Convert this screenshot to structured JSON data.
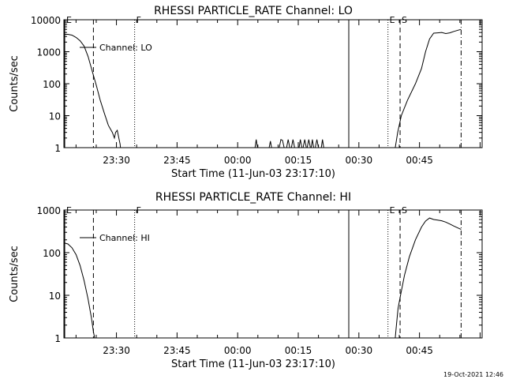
{
  "footer": {
    "timestamp": "19-Oct-2021 12:46"
  },
  "chart_data": [
    {
      "type": "line",
      "title": "RHESSI PARTICLE_RATE Channel: LO",
      "xlabel": "Start Time (11-Jun-03 23:17:10)",
      "ylabel": "Counts/sec",
      "xlim": [
        0,
        103.5
      ],
      "ylim": [
        1,
        10000
      ],
      "yscale": "log",
      "x_ticks": [
        {
          "x": 13,
          "label": "23:30"
        },
        {
          "x": 28,
          "label": "23:45"
        },
        {
          "x": 43,
          "label": "00:00"
        },
        {
          "x": 58,
          "label": "00:15"
        },
        {
          "x": 73,
          "label": "00:30"
        },
        {
          "x": 88,
          "label": "00:45"
        }
      ],
      "y_ticks": [
        {
          "y": 10000,
          "label": "10000"
        },
        {
          "y": 1000,
          "label": "1000"
        },
        {
          "y": 100,
          "label": "100"
        },
        {
          "y": 10,
          "label": "10"
        },
        {
          "y": 1,
          "label": "1"
        }
      ],
      "legend": {
        "label": "Channel: LO",
        "placement": "top-left"
      },
      "markers": [
        {
          "x": 0.2,
          "label": "E",
          "style": "solid"
        },
        {
          "x": 7.3,
          "label": "",
          "style": "dashed"
        },
        {
          "x": 17.5,
          "label": "F",
          "style": "dotted"
        },
        {
          "x": 70.5,
          "label": "",
          "style": "solid"
        },
        {
          "x": 80.2,
          "label": "E",
          "style": "dotted"
        },
        {
          "x": 83.2,
          "label": "S",
          "style": "dashed"
        },
        {
          "x": 98.3,
          "label": "",
          "style": "dashdot"
        }
      ],
      "series": [
        {
          "name": "Channel: LO",
          "segments": [
            [
              [
                0,
                3500
              ],
              [
                1,
                3500
              ],
              [
                2,
                3300
              ],
              [
                3,
                2800
              ],
              [
                4,
                2200
              ],
              [
                5,
                1500
              ],
              [
                6,
                700
              ],
              [
                7,
                250
              ],
              [
                8,
                90
              ],
              [
                9,
                30
              ],
              [
                10,
                12
              ],
              [
                11,
                5
              ],
              [
                12,
                3
              ],
              [
                12.5,
                2
              ],
              [
                12.8,
                3
              ],
              [
                13.2,
                3.5
              ],
              [
                13.6,
                2
              ],
              [
                13.9,
                1.3
              ],
              [
                14,
                1
              ]
            ],
            [
              [
                47.3,
                1
              ],
              [
                47.6,
                1.8
              ],
              [
                47.9,
                1
              ]
            ],
            [
              [
                50.8,
                1
              ],
              [
                51.1,
                1.6
              ],
              [
                51.4,
                1
              ]
            ],
            [
              [
                53.3,
                1
              ],
              [
                53.7,
                1.8
              ],
              [
                54.1,
                1.7
              ],
              [
                54.5,
                1
              ]
            ],
            [
              [
                55.1,
                1
              ],
              [
                55.5,
                1.8
              ],
              [
                55.9,
                1
              ]
            ],
            [
              [
                56.3,
                1
              ],
              [
                56.7,
                1.8
              ],
              [
                57.1,
                1
              ]
            ],
            [
              [
                58.2,
                1
              ],
              [
                58.5,
                1.8
              ],
              [
                58.9,
                1
              ]
            ],
            [
              [
                59.2,
                1
              ],
              [
                59.6,
                1.8
              ],
              [
                60.0,
                1
              ]
            ],
            [
              [
                60.2,
                1
              ],
              [
                60.6,
                1.8
              ],
              [
                61.0,
                1
              ]
            ],
            [
              [
                61.2,
                1
              ],
              [
                61.5,
                1.8
              ],
              [
                61.8,
                1
              ]
            ],
            [
              [
                62.2,
                1
              ],
              [
                62.6,
                1.8
              ],
              [
                63.0,
                1
              ]
            ],
            [
              [
                63.7,
                1
              ],
              [
                64.0,
                1.8
              ],
              [
                64.3,
                1
              ]
            ],
            [
              [
                82.0,
                1
              ],
              [
                82.6,
                3
              ],
              [
                83.5,
                10
              ],
              [
                85,
                30
              ],
              [
                87,
                100
              ],
              [
                88.5,
                300
              ],
              [
                89.5,
                1000
              ],
              [
                90.5,
                2500
              ],
              [
                91.5,
                3800
              ],
              [
                92.5,
                3900
              ],
              [
                93.5,
                4000
              ],
              [
                94.5,
                3700
              ],
              [
                95.5,
                3900
              ],
              [
                96.5,
                4300
              ],
              [
                97.5,
                4700
              ],
              [
                98.3,
                5000
              ]
            ]
          ]
        }
      ]
    },
    {
      "type": "line",
      "title": "RHESSI PARTICLE_RATE Channel: HI",
      "xlabel": "Start Time (11-Jun-03 23:17:10)",
      "ylabel": "Counts/sec",
      "xlim": [
        0,
        103.5
      ],
      "ylim": [
        1,
        1000
      ],
      "yscale": "log",
      "x_ticks": [
        {
          "x": 13,
          "label": "23:30"
        },
        {
          "x": 28,
          "label": "23:45"
        },
        {
          "x": 43,
          "label": "00:00"
        },
        {
          "x": 58,
          "label": "00:15"
        },
        {
          "x": 73,
          "label": "00:30"
        },
        {
          "x": 88,
          "label": "00:45"
        }
      ],
      "y_ticks": [
        {
          "y": 1000,
          "label": "1000"
        },
        {
          "y": 100,
          "label": "100"
        },
        {
          "y": 10,
          "label": "10"
        },
        {
          "y": 1,
          "label": "1"
        }
      ],
      "legend": {
        "label": "Channel: HI",
        "placement": "top-left"
      },
      "markers": [
        {
          "x": 0.2,
          "label": "E",
          "style": "solid"
        },
        {
          "x": 7.3,
          "label": "",
          "style": "dashed"
        },
        {
          "x": 17.5,
          "label": "F",
          "style": "dotted"
        },
        {
          "x": 70.5,
          "label": "",
          "style": "solid"
        },
        {
          "x": 80.2,
          "label": "E",
          "style": "dotted"
        },
        {
          "x": 83.2,
          "label": "S",
          "style": "dashed"
        },
        {
          "x": 98.3,
          "label": "",
          "style": "dashdot"
        }
      ],
      "series": [
        {
          "name": "Channel: HI",
          "segments": [
            [
              [
                0,
                170
              ],
              [
                1,
                160
              ],
              [
                2,
                130
              ],
              [
                3,
                90
              ],
              [
                4,
                50
              ],
              [
                5,
                22
              ],
              [
                6,
                8
              ],
              [
                6.8,
                3
              ],
              [
                7.3,
                1.4
              ],
              [
                7.6,
                1
              ]
            ],
            [
              [
                82.0,
                1
              ],
              [
                82.3,
                2
              ],
              [
                82.7,
                5
              ],
              [
                83.3,
                10
              ],
              [
                84.3,
                30
              ],
              [
                85.5,
                80
              ],
              [
                87,
                200
              ],
              [
                88.5,
                400
              ],
              [
                89.5,
                550
              ],
              [
                90.5,
                650
              ],
              [
                91.5,
                600
              ],
              [
                92.5,
                580
              ],
              [
                93.5,
                560
              ],
              [
                94.5,
                520
              ],
              [
                95.5,
                470
              ],
              [
                96.5,
                420
              ],
              [
                97.5,
                380
              ],
              [
                98.3,
                350
              ]
            ]
          ]
        }
      ]
    }
  ]
}
